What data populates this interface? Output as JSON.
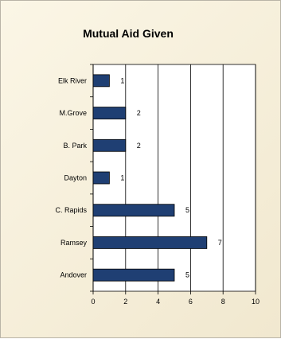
{
  "chart_data": {
    "type": "bar",
    "orientation": "horizontal",
    "title": "Mutual Aid Given",
    "xlabel": "",
    "ylabel": "",
    "categories": [
      "Elk River",
      "M.Grove",
      "B. Park",
      "Dayton",
      "C. Rapids",
      "Ramsey",
      "Andover"
    ],
    "values": [
      1,
      2,
      2,
      1,
      5,
      7,
      5
    ],
    "data_labels": [
      "1",
      "2",
      "2",
      "1",
      "5",
      "7",
      "5"
    ],
    "xlim": [
      0,
      10
    ],
    "x_ticks": [
      0,
      2,
      4,
      6,
      8,
      10
    ],
    "grid": "vertical",
    "legend": "none",
    "colors": {
      "bar": "#1f3f73",
      "plot_background": "#ffffff",
      "chart_background": "#f6efd9",
      "grid": "#000000"
    }
  }
}
